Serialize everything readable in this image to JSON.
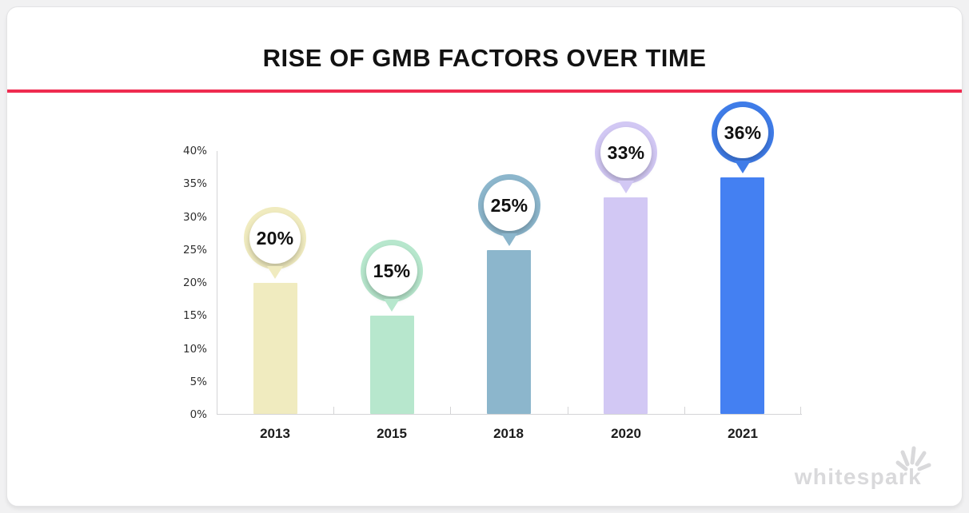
{
  "page": {
    "title": "RISE OF GMB FACTORS OVER TIME",
    "accent_color": "#ef2b50",
    "background_color": "#ffffff"
  },
  "brand": {
    "name": "whitespark",
    "color": "#d9d9db",
    "icon": "spark-burst-icon"
  },
  "chart_data": {
    "type": "bar",
    "title": "RISE OF GMB FACTORS OVER TIME",
    "categories": [
      "2013",
      "2015",
      "2018",
      "2020",
      "2021"
    ],
    "values": [
      20,
      15,
      25,
      33,
      36
    ],
    "data_labels": [
      "20%",
      "15%",
      "25%",
      "33%",
      "36%"
    ],
    "bar_colors": [
      "#f0ebbf",
      "#b7e7cd",
      "#8cb6cc",
      "#d2c8f4",
      "#4480f2"
    ],
    "badge_ring_colors": [
      "#f0ebbf",
      "#b7e7cd",
      "#8cb6cc",
      "#d2c8f4",
      "#3f7ce8"
    ],
    "xlabel": "",
    "ylabel": "",
    "ylim": [
      0,
      40
    ],
    "ytick_step": 5,
    "ytick_labels": [
      "0%",
      "5%",
      "10%",
      "15%",
      "20%",
      "25%",
      "30%",
      "35%",
      "40%"
    ],
    "grid": false,
    "legend": "none",
    "axis_color": "#d4d4d6"
  }
}
